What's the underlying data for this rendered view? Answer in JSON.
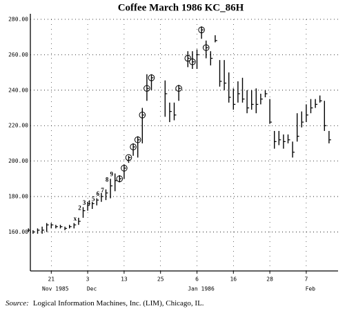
{
  "chart_data": {
    "type": "hlc",
    "title": "Coffee March 1986 KC_86H",
    "source_label": "Source:",
    "source": "Logical Information Machines, Inc. (LIM), Chicago, IL.",
    "color": "#000000",
    "grid": true,
    "ylim": [
      138,
      280
    ],
    "yticks": [
      {
        "value": 160,
        "label": "160.00"
      },
      {
        "value": 180,
        "label": "180.00"
      },
      {
        "value": 200,
        "label": "200.00"
      },
      {
        "value": 220,
        "label": "220.00"
      },
      {
        "value": 240,
        "label": "240.00"
      },
      {
        "value": 260,
        "label": "260.00"
      },
      {
        "value": 280,
        "label": "280.00"
      }
    ],
    "categories": [
      null,
      null,
      null,
      null,
      null,
      "21",
      null,
      null,
      null,
      null,
      null,
      null,
      null,
      "3",
      null,
      null,
      null,
      null,
      null,
      null,
      null,
      "13",
      null,
      null,
      null,
      null,
      null,
      null,
      null,
      "25",
      null,
      null,
      null,
      null,
      null,
      null,
      null,
      "6",
      null,
      null,
      null,
      null,
      null,
      null,
      null,
      "16",
      null,
      null,
      null,
      null,
      null,
      null,
      null,
      "28",
      null,
      null,
      null,
      null,
      null,
      null,
      null,
      "7",
      null,
      null,
      null,
      null,
      null
    ],
    "category_months": [
      null,
      null,
      null,
      null,
      null,
      "Nov 1985",
      null,
      null,
      null,
      null,
      null,
      null,
      null,
      "Dec",
      null,
      null,
      null,
      null,
      null,
      null,
      null,
      null,
      null,
      null,
      null,
      null,
      null,
      null,
      null,
      null,
      null,
      null,
      null,
      null,
      null,
      null,
      null,
      "Jan 1986",
      null,
      null,
      null,
      null,
      null,
      null,
      null,
      null,
      null,
      null,
      null,
      null,
      null,
      null,
      null,
      null,
      null,
      null,
      null,
      null,
      null,
      null,
      null,
      "Feb",
      null,
      null,
      null,
      null,
      null
    ],
    "high": [
      162,
      161,
      162,
      163,
      165,
      165,
      164,
      164,
      163,
      164,
      165,
      168,
      174,
      177,
      177,
      179,
      182,
      184,
      190,
      193,
      192,
      198,
      203,
      210,
      214,
      230,
      249,
      249,
      null,
      null,
      245.5,
      233,
      233,
      243,
      null,
      262,
      262,
      263,
      276,
      268,
      262,
      271,
      257,
      257,
      250,
      241,
      245,
      247,
      240,
      240,
      241,
      238,
      240,
      235,
      217,
      217,
      215,
      215,
      211,
      227,
      228,
      232,
      235,
      235,
      237,
      234,
      217
    ],
    "low": [
      160,
      159,
      159,
      159,
      160,
      162,
      162,
      162,
      161,
      162,
      162,
      164,
      168,
      172,
      173,
      175,
      177,
      178,
      179,
      183,
      188,
      190,
      199,
      203,
      202,
      210,
      234,
      240,
      null,
      null,
      225,
      222,
      223,
      234,
      null,
      253,
      252,
      252,
      269,
      258,
      254,
      267,
      242,
      240,
      233,
      229,
      233,
      233,
      227,
      229,
      227,
      232,
      236,
      221,
      207,
      209,
      207,
      210,
      202,
      211,
      219,
      222,
      227,
      230,
      233,
      217,
      210
    ],
    "close": [
      161,
      160,
      161,
      161,
      164,
      164,
      163,
      163,
      162,
      163,
      164,
      166,
      172,
      175,
      176,
      178,
      180,
      182,
      186,
      189,
      190,
      196,
      202,
      208,
      212,
      226,
      241,
      247,
      null,
      null,
      238,
      228,
      226,
      241,
      null,
      258,
      256,
      260,
      274,
      264,
      258,
      268,
      245,
      244,
      236,
      232,
      238,
      235,
      230,
      232,
      232,
      235,
      238,
      222,
      211,
      212,
      211,
      212,
      205,
      214,
      222,
      226,
      230,
      232,
      234,
      220,
      212
    ],
    "bar_labels": [
      null,
      null,
      null,
      null,
      null,
      null,
      null,
      null,
      null,
      null,
      null,
      "x",
      "2",
      "3",
      "4",
      "5",
      "6",
      "7",
      "8",
      "9",
      null,
      null,
      null,
      null,
      null,
      null,
      null,
      null,
      null,
      null,
      null,
      null,
      null,
      null,
      null,
      null,
      null,
      null,
      null,
      null,
      null,
      null,
      null,
      null,
      null,
      null,
      null,
      null,
      null,
      null,
      null,
      null,
      null,
      null,
      null,
      null,
      null,
      null,
      null,
      null,
      null,
      null,
      null,
      null,
      null,
      null,
      null
    ],
    "circled": [
      false,
      false,
      false,
      false,
      false,
      false,
      false,
      false,
      false,
      false,
      false,
      false,
      false,
      false,
      false,
      false,
      false,
      false,
      false,
      false,
      true,
      true,
      true,
      true,
      true,
      true,
      true,
      true,
      false,
      false,
      false,
      false,
      false,
      true,
      false,
      true,
      true,
      false,
      true,
      true,
      false,
      false,
      false,
      false,
      false,
      false,
      false,
      false,
      false,
      false,
      false,
      false,
      false,
      false,
      false,
      false,
      false,
      false,
      false,
      false,
      false,
      false,
      false,
      false,
      false,
      false,
      false
    ]
  }
}
